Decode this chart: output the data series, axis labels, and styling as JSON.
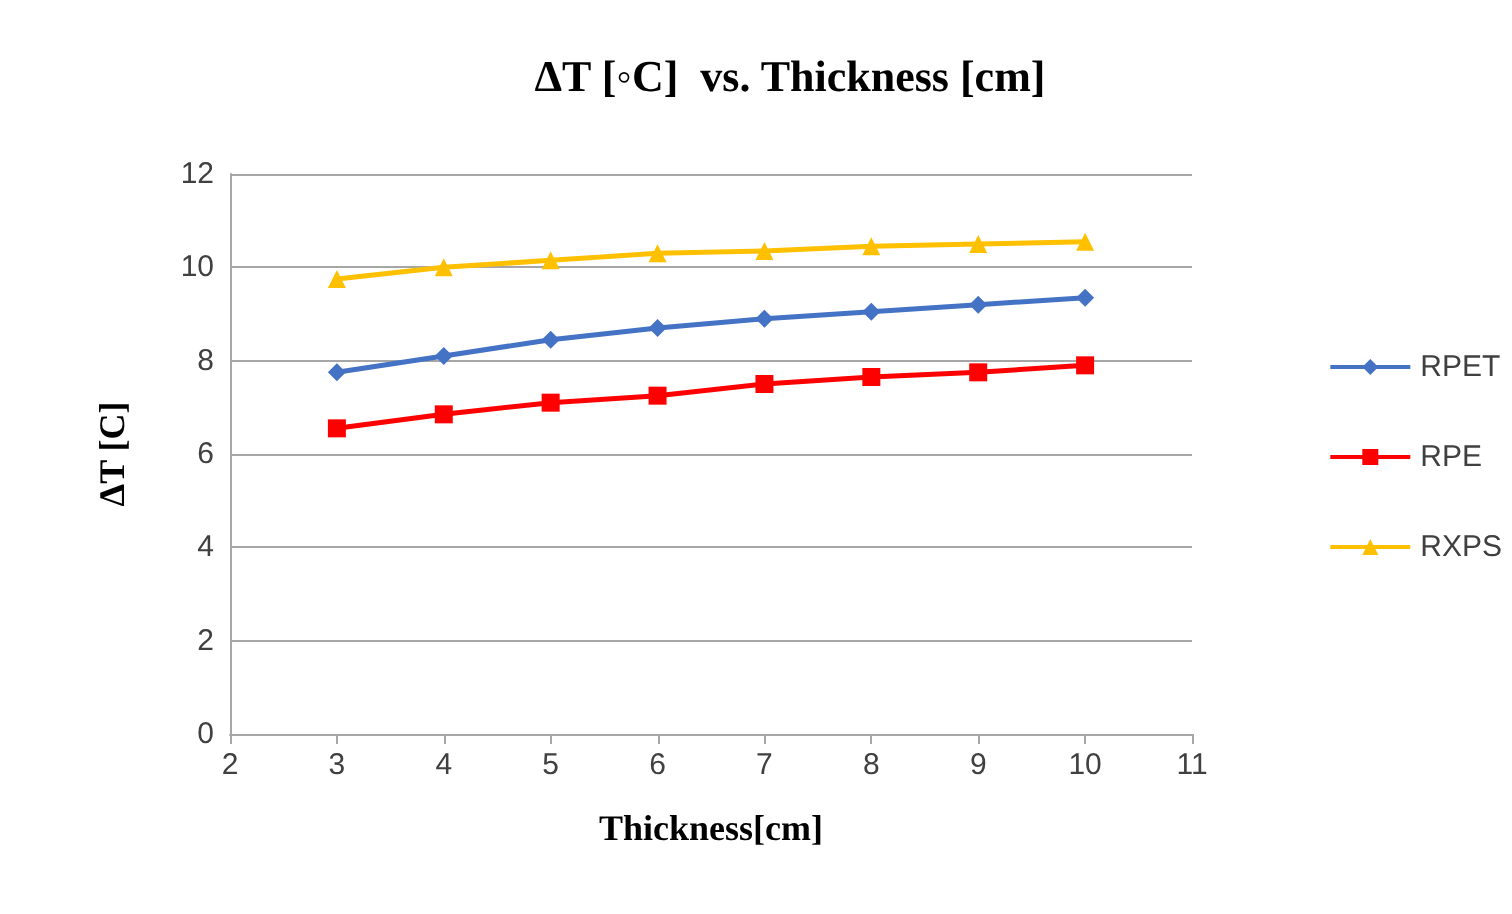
{
  "chart_data": {
    "type": "line",
    "title": "ΔT [◦C]  vs. Thickness [cm]",
    "xlabel": "Thickness[cm]",
    "ylabel": "ΔT [C]",
    "x": [
      3,
      4,
      5,
      6,
      7,
      8,
      9,
      10
    ],
    "series": [
      {
        "name": "RPET",
        "color": "#4472c4",
        "marker": "diamond",
        "values": [
          7.75,
          8.1,
          8.45,
          8.7,
          8.9,
          9.05,
          9.2,
          9.35
        ]
      },
      {
        "name": "RPE",
        "color": "#ff0000",
        "marker": "square",
        "values": [
          6.55,
          6.85,
          7.1,
          7.25,
          7.5,
          7.65,
          7.75,
          7.9
        ]
      },
      {
        "name": "RXPS",
        "color": "#ffc000",
        "marker": "triangle",
        "values": [
          9.75,
          10.0,
          10.15,
          10.3,
          10.35,
          10.45,
          10.5,
          10.55
        ]
      }
    ],
    "xlim": [
      2,
      11
    ],
    "xticks": [
      2,
      3,
      4,
      5,
      6,
      7,
      8,
      9,
      10,
      11
    ],
    "ylim": [
      0,
      12
    ],
    "yticks": [
      0,
      2,
      4,
      6,
      8,
      10,
      12
    ],
    "grid": "y",
    "legend": "right",
    "line_style": "solid"
  }
}
